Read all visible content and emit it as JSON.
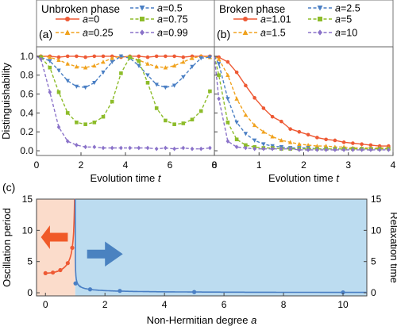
{
  "colors": {
    "red": "#ee5a35",
    "orange": "#f0a21e",
    "blue": "#4a7fc4",
    "green": "#8dbc2a",
    "purple": "#8a72c9",
    "panel_c_left_fill": "#fbdccb",
    "panel_c_right_fill": "#bcdcf0",
    "arrow_red": "#f05a28",
    "arrow_blue": "#4a82c0"
  },
  "chart_data": [
    {
      "type": "line",
      "panel_label": "(a)",
      "title": "Unbroken phase",
      "xlabel": "Evolution time",
      "xlabel_var": "t",
      "ylabel": "Distinguishability",
      "xlim": [
        0,
        8
      ],
      "ylim": [
        -0.05,
        1.1
      ],
      "xticks": [
        0,
        2,
        4,
        6,
        8
      ],
      "yticks": [
        0.0,
        0.2,
        0.4,
        0.6,
        0.8,
        1.0
      ],
      "grid": false,
      "legend": "top",
      "series": [
        {
          "name": "a=0",
          "a": 0,
          "color": "red",
          "marker": "circle",
          "line": "solid",
          "x": [
            0.2,
            0.6,
            1.0,
            1.4,
            1.8,
            2.2,
            2.6,
            3.0,
            3.4,
            3.8,
            4.2,
            4.6,
            5.0,
            5.4,
            5.8,
            6.2,
            6.6,
            7.0,
            7.4,
            7.8
          ],
          "y": [
            1.0,
            1.0,
            0.99,
            1.0,
            1.0,
            0.99,
            1.0,
            1.0,
            1.0,
            0.99,
            1.0,
            1.0,
            0.99,
            1.0,
            1.0,
            1.0,
            0.99,
            1.0,
            1.0,
            1.0
          ]
        },
        {
          "name": "a=0.25",
          "a": 0.25,
          "color": "orange",
          "marker": "triangle",
          "line": "dashed",
          "x": [
            0.2,
            0.6,
            1.0,
            1.4,
            1.8,
            2.2,
            2.6,
            3.0,
            3.4,
            3.8,
            4.2,
            4.6,
            5.0,
            5.4,
            5.8,
            6.2,
            6.6,
            7.0,
            7.4,
            7.8
          ],
          "y": [
            1.0,
            0.99,
            0.96,
            0.92,
            0.89,
            0.88,
            0.9,
            0.94,
            0.98,
            1.0,
            0.99,
            0.96,
            0.92,
            0.89,
            0.88,
            0.9,
            0.94,
            0.98,
            1.0,
            0.99
          ]
        },
        {
          "name": "a=0.5",
          "a": 0.5,
          "color": "blue",
          "marker": "triangle-down",
          "line": "dashed",
          "x": [
            0.2,
            0.6,
            1.0,
            1.4,
            1.8,
            2.2,
            2.6,
            3.0,
            3.4,
            3.8,
            4.2,
            4.6,
            5.0,
            5.4,
            5.8,
            6.2,
            6.6,
            7.0,
            7.4,
            7.8
          ],
          "y": [
            0.99,
            0.95,
            0.85,
            0.74,
            0.68,
            0.67,
            0.72,
            0.83,
            0.94,
            1.0,
            0.98,
            0.9,
            0.8,
            0.7,
            0.67,
            0.69,
            0.78,
            0.89,
            0.98,
            0.99
          ]
        },
        {
          "name": "a=0.75",
          "a": 0.75,
          "color": "green",
          "marker": "square",
          "line": "dashed",
          "x": [
            0.2,
            0.6,
            1.0,
            1.4,
            1.8,
            2.2,
            2.6,
            3.0,
            3.4,
            3.8,
            4.2,
            4.6,
            5.0,
            5.4,
            5.8,
            6.2,
            6.6,
            7.0,
            7.4,
            7.8
          ],
          "y": [
            0.99,
            0.88,
            0.62,
            0.4,
            0.3,
            0.28,
            0.3,
            0.36,
            0.52,
            0.82,
            0.99,
            0.95,
            0.72,
            0.45,
            0.32,
            0.28,
            0.29,
            0.33,
            0.42,
            0.63
          ]
        },
        {
          "name": "a=0.99",
          "a": 0.99,
          "color": "purple",
          "marker": "diamond",
          "line": "dashed",
          "x": [
            0.2,
            0.6,
            1.0,
            1.4,
            1.8,
            2.2,
            2.6,
            3.0,
            3.4,
            3.8,
            4.2,
            4.6,
            5.0,
            5.4,
            5.8,
            6.2,
            6.6,
            7.0,
            7.4,
            7.8
          ],
          "y": [
            0.97,
            0.62,
            0.25,
            0.1,
            0.06,
            0.04,
            0.04,
            0.03,
            0.03,
            0.03,
            0.03,
            0.03,
            0.03,
            0.02,
            0.03,
            0.02,
            0.03,
            0.02,
            0.02,
            0.03
          ]
        }
      ]
    },
    {
      "type": "line",
      "panel_label": "(b)",
      "title": "Broken phase",
      "xlabel": "Evolution time",
      "xlabel_var": "t",
      "xlim": [
        0,
        4
      ],
      "ylim": [
        -0.05,
        1.1
      ],
      "xticks": [
        0,
        1,
        2,
        3,
        4
      ],
      "grid": false,
      "legend": "top",
      "series": [
        {
          "name": "a=1.01",
          "a": 1.01,
          "color": "red",
          "marker": "circle",
          "line": "solid",
          "x": [
            0.1,
            0.3,
            0.5,
            0.7,
            0.9,
            1.1,
            1.3,
            1.5,
            1.7,
            1.9,
            2.1,
            2.3,
            2.5,
            2.7,
            2.9,
            3.1,
            3.3,
            3.5,
            3.7,
            3.9
          ],
          "y": [
            0.99,
            0.94,
            0.83,
            0.69,
            0.56,
            0.45,
            0.36,
            0.31,
            0.23,
            0.2,
            0.17,
            0.14,
            0.12,
            0.11,
            0.09,
            0.08,
            0.07,
            0.06,
            0.05,
            0.05
          ]
        },
        {
          "name": "a=1.5",
          "a": 1.5,
          "color": "orange",
          "marker": "triangle",
          "line": "dashed",
          "x": [
            0.1,
            0.3,
            0.5,
            0.7,
            0.9,
            1.1,
            1.3,
            1.5,
            1.7,
            1.9,
            2.1,
            2.3,
            2.5,
            2.7,
            2.9,
            3.1,
            3.3,
            3.5,
            3.7,
            3.9
          ],
          "y": [
            0.97,
            0.8,
            0.55,
            0.38,
            0.27,
            0.2,
            0.15,
            0.11,
            0.09,
            0.07,
            0.06,
            0.05,
            0.05,
            0.04,
            0.04,
            0.03,
            0.03,
            0.03,
            0.03,
            0.03
          ]
        },
        {
          "name": "a=2.5",
          "a": 2.5,
          "color": "blue",
          "marker": "triangle-down",
          "line": "dashed",
          "x": [
            0.1,
            0.3,
            0.5,
            0.7,
            0.9,
            1.1,
            1.3,
            1.5,
            1.7,
            1.9,
            2.1,
            2.3,
            2.5,
            2.7,
            2.9,
            3.1,
            3.3,
            3.5,
            3.7,
            3.9
          ],
          "y": [
            0.92,
            0.55,
            0.3,
            0.18,
            0.11,
            0.07,
            0.05,
            0.04,
            0.03,
            0.03,
            0.03,
            0.02,
            0.02,
            0.02,
            0.02,
            0.02,
            0.02,
            0.02,
            0.02,
            0.02
          ]
        },
        {
          "name": "a=5",
          "a": 5,
          "color": "green",
          "marker": "square",
          "line": "dashed",
          "x": [
            0.1,
            0.3,
            0.5,
            0.7,
            0.9,
            1.1,
            1.3,
            1.5,
            1.7,
            1.9,
            2.1,
            2.3,
            2.5,
            2.7,
            2.9,
            3.1,
            3.3,
            3.5,
            3.7,
            3.9
          ],
          "y": [
            0.8,
            0.3,
            0.12,
            0.06,
            0.04,
            0.03,
            0.03,
            0.02,
            0.02,
            0.02,
            0.02,
            0.02,
            0.02,
            0.02,
            0.02,
            0.02,
            0.02,
            0.02,
            0.02,
            0.02
          ]
        },
        {
          "name": "a=10",
          "a": 10,
          "color": "purple",
          "marker": "diamond",
          "line": "dashed",
          "x": [
            0.1,
            0.3,
            0.5,
            0.7,
            0.9,
            1.1,
            1.3,
            1.5,
            1.7,
            1.9,
            2.1,
            2.3,
            2.5,
            2.7,
            2.9,
            3.1,
            3.3,
            3.5,
            3.7,
            3.9
          ],
          "y": [
            0.55,
            0.1,
            0.04,
            0.03,
            0.02,
            0.02,
            0.02,
            0.02,
            0.02,
            0.01,
            0.01,
            0.01,
            0.01,
            0.01,
            0.01,
            0.01,
            0.01,
            0.01,
            0.01,
            0.01
          ]
        }
      ]
    },
    {
      "type": "line",
      "panel_label": "(c)",
      "xlabel": "Non-Hermitian degree",
      "xlabel_var": "a",
      "ylabel_left": "Oscillation period",
      "ylabel_right": "Relaxation time",
      "xlim": [
        -0.3,
        10.8
      ],
      "ylim": [
        -0.5,
        15
      ],
      "xticks": [
        0,
        2,
        4,
        6,
        8,
        10
      ],
      "yticks": [
        0,
        5,
        10,
        15
      ],
      "grid": false,
      "series": [
        {
          "name": "Oscillation period",
          "color": "red",
          "marker": "circle",
          "region": "a<1",
          "x": [
            0,
            0.25,
            0.5,
            0.75,
            0.9
          ],
          "y": [
            3.14,
            3.24,
            3.63,
            4.75,
            7.2
          ]
        },
        {
          "name": "Relaxation time",
          "color": "blue",
          "marker": "circle",
          "region": "a>1",
          "x": [
            1.01,
            1.5,
            2.5,
            5,
            10
          ],
          "y": [
            1.5,
            0.55,
            0.3,
            0.12,
            0.06
          ]
        }
      ]
    }
  ]
}
